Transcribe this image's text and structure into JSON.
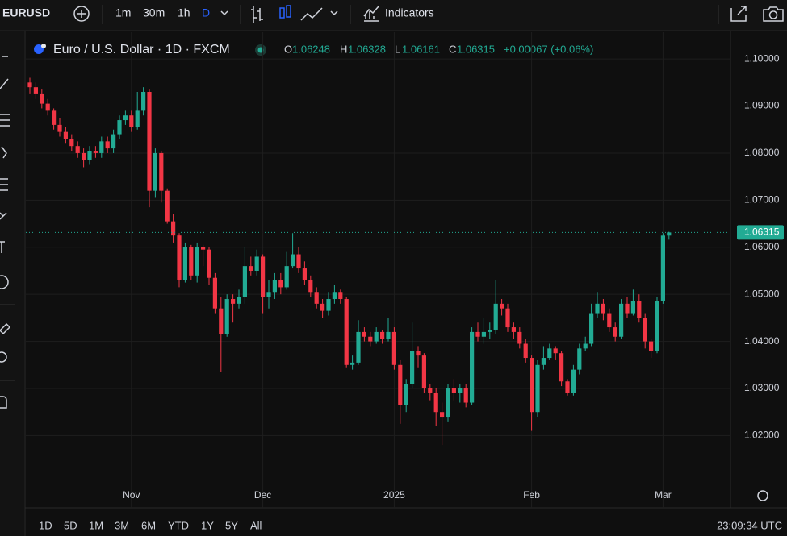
{
  "toolbar": {
    "symbol": "EURUSD",
    "intervals": [
      "1m",
      "30m",
      "1h",
      "D"
    ],
    "indicators": "Indicators"
  },
  "chart_data": {
    "type": "candlestick",
    "title": "Euro / U.S. Dollar · 1D · FXCM",
    "ohlc_letters": [
      "O",
      "H",
      "L",
      "C"
    ],
    "ohlc_values": [
      1.06248,
      1.06328,
      1.06161,
      1.06315
    ],
    "change_label": "+0.00067 (+0.06%)",
    "up_color": "#22ab94",
    "down_color": "#f23645",
    "grid": true,
    "categories": [
      null,
      null,
      null,
      null,
      null,
      null,
      null,
      null,
      null,
      null,
      null,
      null,
      null,
      null,
      null,
      null,
      null,
      "Nov",
      null,
      null,
      null,
      null,
      null,
      null,
      null,
      null,
      null,
      null,
      null,
      null,
      null,
      null,
      null,
      null,
      null,
      null,
      null,
      null,
      null,
      "Dec",
      null,
      null,
      null,
      null,
      null,
      null,
      null,
      null,
      null,
      null,
      null,
      null,
      null,
      null,
      null,
      null,
      null,
      null,
      null,
      null,
      null,
      "2025",
      null,
      null,
      null,
      null,
      null,
      null,
      null,
      null,
      null,
      null,
      null,
      null,
      null,
      null,
      null,
      null,
      null,
      null,
      null,
      null,
      null,
      null,
      "Feb",
      null,
      null,
      null,
      null,
      null,
      null,
      null,
      null,
      null,
      null,
      null,
      null,
      null,
      null,
      null,
      null,
      null,
      null,
      null,
      null,
      null,
      "Mar",
      null
    ],
    "open": [
      1.095,
      1.094,
      1.0925,
      1.0905,
      1.089,
      1.086,
      1.0845,
      1.083,
      1.0815,
      1.08,
      1.0785,
      1.0805,
      1.08,
      1.0825,
      1.081,
      1.084,
      1.087,
      1.088,
      1.0855,
      1.089,
      1.093,
      1.072,
      1.08,
      1.072,
      1.0655,
      1.0625,
      1.053,
      1.06,
      1.054,
      1.06,
      1.0595,
      1.0535,
      1.047,
      1.0415,
      1.049,
      1.048,
      1.0495,
      1.056,
      1.055,
      1.058,
      1.0495,
      1.0505,
      1.053,
      1.0515,
      1.056,
      1.0585,
      1.0555,
      1.053,
      1.0505,
      1.048,
      1.0465,
      1.049,
      1.0505,
      1.049,
      1.035,
      1.0355,
      1.042,
      1.041,
      1.04,
      1.042,
      1.0405,
      1.042,
      1.035,
      1.0265,
      1.031,
      1.038,
      1.037,
      1.03,
      1.029,
      1.025,
      1.024,
      1.03,
      1.029,
      1.03,
      1.027,
      1.042,
      1.041,
      1.042,
      1.0425,
      1.048,
      1.047,
      1.043,
      1.042,
      1.0395,
      1.0365,
      1.025,
      1.035,
      1.0365,
      1.0385,
      1.0375,
      1.0315,
      1.029,
      1.034,
      1.0385,
      1.0395,
      1.046,
      1.048,
      1.046,
      1.043,
      1.041,
      1.048,
      1.046,
      1.0485,
      1.045,
      1.04,
      1.038,
      1.0485,
      1.06248
    ],
    "high": [
      1.096,
      1.095,
      1.0935,
      1.0915,
      1.0895,
      1.0875,
      1.0855,
      1.084,
      1.0825,
      1.081,
      1.0815,
      1.0815,
      1.0835,
      1.0835,
      1.085,
      1.088,
      1.089,
      1.089,
      1.093,
      1.094,
      1.0935,
      1.081,
      1.0805,
      1.0725,
      1.067,
      1.063,
      1.061,
      1.0605,
      1.061,
      1.0605,
      1.06,
      1.0545,
      1.0495,
      1.05,
      1.05,
      1.051,
      1.06,
      1.058,
      1.0595,
      1.0585,
      1.053,
      1.0545,
      1.0545,
      1.059,
      1.063,
      1.06,
      1.057,
      1.054,
      1.0515,
      1.049,
      1.0505,
      1.052,
      1.051,
      1.0495,
      1.037,
      1.0445,
      1.043,
      1.042,
      1.043,
      1.0425,
      1.045,
      1.043,
      1.036,
      1.032,
      1.044,
      1.039,
      1.0375,
      1.031,
      1.03,
      1.027,
      1.031,
      1.032,
      1.031,
      1.031,
      1.043,
      1.044,
      1.045,
      1.044,
      1.053,
      1.049,
      1.048,
      1.044,
      1.043,
      1.0405,
      1.037,
      1.036,
      1.039,
      1.0395,
      1.039,
      1.038,
      1.032,
      1.035,
      1.0395,
      1.041,
      1.048,
      1.0505,
      1.049,
      1.047,
      1.044,
      1.049,
      1.0495,
      1.051,
      1.05,
      1.046,
      1.0405,
      1.0495,
      1.063,
      1.06328
    ],
    "low": [
      1.0925,
      1.0915,
      1.0895,
      1.088,
      1.085,
      1.0835,
      1.082,
      1.0805,
      1.079,
      1.077,
      1.0775,
      1.079,
      1.079,
      1.08,
      1.08,
      1.083,
      1.086,
      1.0845,
      1.085,
      1.088,
      1.0685,
      1.0705,
      1.0695,
      1.065,
      1.061,
      1.0515,
      1.0525,
      1.053,
      1.0525,
      1.056,
      1.052,
      1.046,
      1.0335,
      1.041,
      1.044,
      1.047,
      1.048,
      1.054,
      1.054,
      1.046,
      1.047,
      1.049,
      1.05,
      1.051,
      1.0555,
      1.0545,
      1.052,
      1.0495,
      1.047,
      1.045,
      1.0455,
      1.048,
      1.048,
      1.0345,
      1.034,
      1.035,
      1.04,
      1.039,
      1.0395,
      1.0395,
      1.04,
      1.034,
      1.0225,
      1.025,
      1.03,
      1.0345,
      1.029,
      1.0275,
      1.022,
      1.018,
      1.023,
      1.0275,
      1.027,
      1.026,
      1.0265,
      1.04,
      1.0395,
      1.0405,
      1.0415,
      1.0455,
      1.042,
      1.0405,
      1.0385,
      1.0355,
      1.021,
      1.024,
      1.034,
      1.036,
      1.036,
      1.0305,
      1.0285,
      1.0285,
      1.033,
      1.038,
      1.039,
      1.045,
      1.0445,
      1.042,
      1.04,
      1.0405,
      1.045,
      1.0455,
      1.044,
      1.0385,
      1.0365,
      1.0375,
      1.048,
      1.06161
    ],
    "close": [
      1.094,
      1.0925,
      1.0905,
      1.089,
      1.086,
      1.0845,
      1.083,
      1.0815,
      1.08,
      1.0785,
      1.0805,
      1.08,
      1.0825,
      1.081,
      1.084,
      1.087,
      1.088,
      1.0855,
      1.089,
      1.093,
      1.072,
      1.08,
      1.072,
      1.0655,
      1.0625,
      1.053,
      1.06,
      1.054,
      1.06,
      1.0595,
      1.0535,
      1.047,
      1.0415,
      1.049,
      1.048,
      1.0495,
      1.056,
      1.055,
      1.058,
      1.0495,
      1.0505,
      1.053,
      1.0515,
      1.056,
      1.0585,
      1.0555,
      1.053,
      1.0505,
      1.048,
      1.0465,
      1.049,
      1.0505,
      1.049,
      1.035,
      1.0355,
      1.042,
      1.041,
      1.04,
      1.042,
      1.0405,
      1.042,
      1.035,
      1.0265,
      1.031,
      1.038,
      1.037,
      1.03,
      1.029,
      1.025,
      1.024,
      1.03,
      1.029,
      1.03,
      1.027,
      1.042,
      1.041,
      1.042,
      1.0425,
      1.048,
      1.047,
      1.043,
      1.042,
      1.0395,
      1.0365,
      1.025,
      1.035,
      1.0365,
      1.0385,
      1.0375,
      1.0315,
      1.029,
      1.034,
      1.0385,
      1.0395,
      1.046,
      1.048,
      1.046,
      1.043,
      1.041,
      1.048,
      1.046,
      1.0485,
      1.045,
      1.04,
      1.038,
      1.0485,
      1.06248,
      1.06315
    ],
    "ylim": [
      1.0098,
      1.1043
    ],
    "yticks": [
      {
        "value": 1.02,
        "label": "1.02000"
      },
      {
        "value": 1.03,
        "label": "1.03000"
      },
      {
        "value": 1.04,
        "label": "1.04000"
      },
      {
        "value": 1.05,
        "label": "1.05000"
      },
      {
        "value": 1.06,
        "label": "1.06000"
      },
      {
        "value": 1.07,
        "label": "1.07000"
      },
      {
        "value": 1.08,
        "label": "1.08000"
      },
      {
        "value": 1.09,
        "label": "1.09000"
      },
      {
        "value": 1.1,
        "label": "1.10000"
      }
    ]
  },
  "footer": {
    "ranges": [
      "1D",
      "5D",
      "1M",
      "3M",
      "6M",
      "YTD",
      "1Y",
      "5Y",
      "All"
    ],
    "time": "23:09:34 UTC"
  }
}
